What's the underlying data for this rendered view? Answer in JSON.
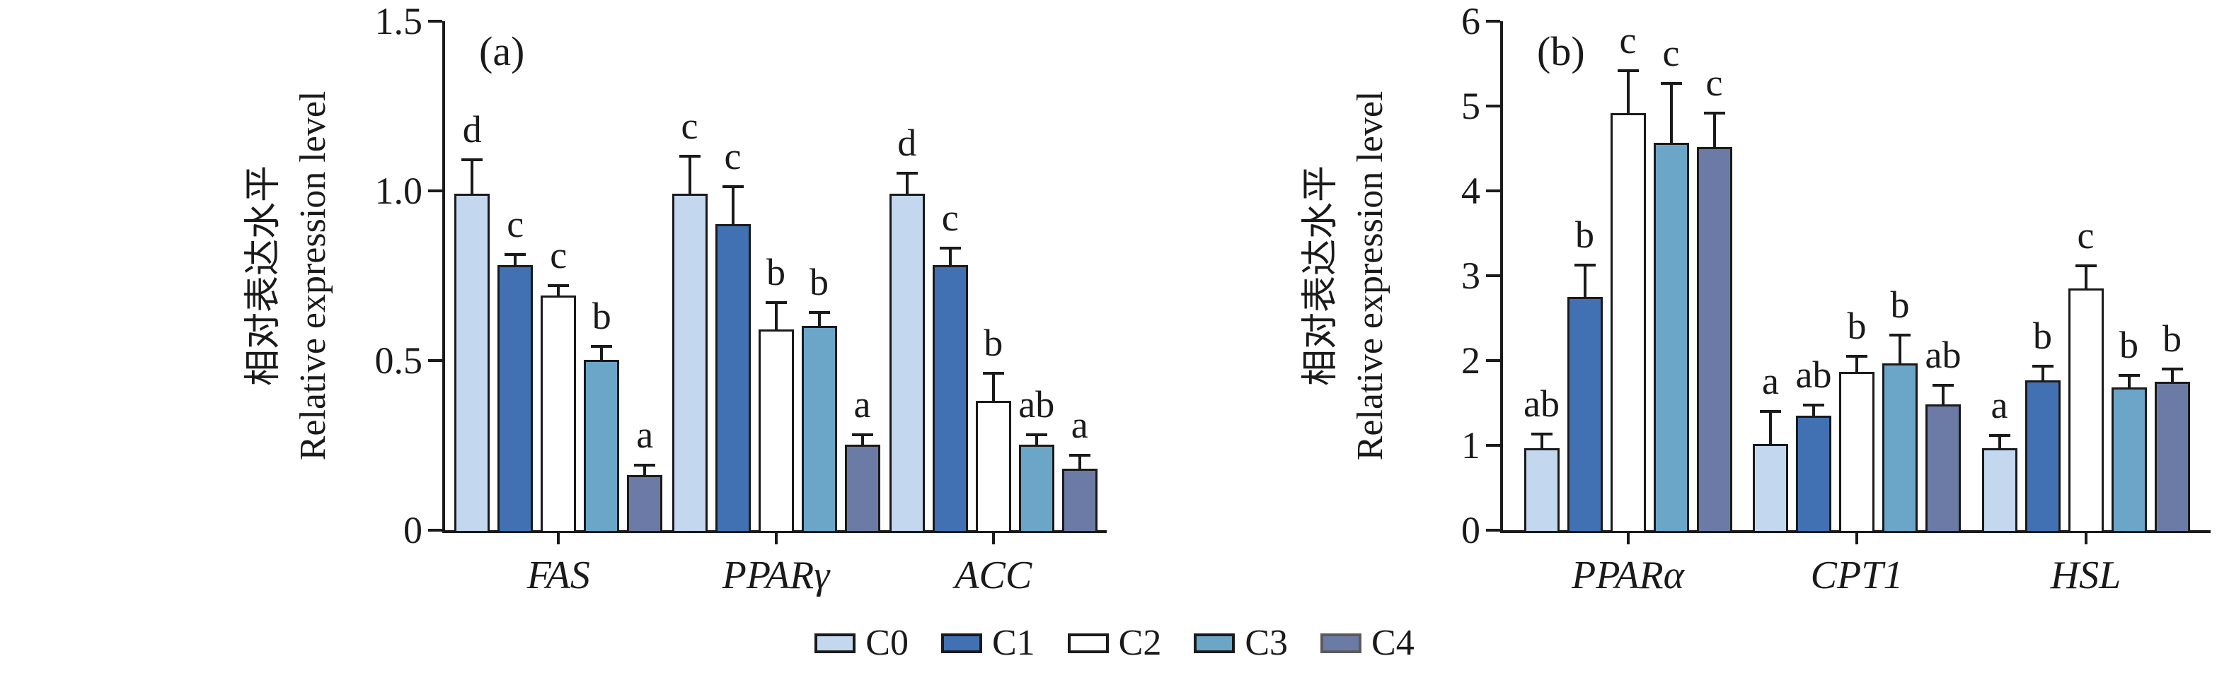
{
  "figure": {
    "background": "#ffffff",
    "text_color": "#1a1a1a",
    "axis_color": "#1a1a1a"
  },
  "legend": {
    "items": [
      {
        "label": "C0",
        "fill": "#c3d7ee",
        "border": "#1a1a1a"
      },
      {
        "label": "C1",
        "fill": "#4171b3",
        "border": "#1a1a1a"
      },
      {
        "label": "C2",
        "fill": "#ffffff",
        "border": "#1a1a1a"
      },
      {
        "label": "C3",
        "fill": "#6ba5c7",
        "border": "#1a1a1a"
      },
      {
        "label": "C4",
        "fill": "#6c7ba6",
        "border": "#5a5a5a"
      }
    ]
  },
  "chart_data": [
    {
      "type": "bar",
      "panel_label": "(a)",
      "ylabel_line1": "相对表达水平",
      "ylabel_line2": "Relative expression level",
      "ylim": [
        0,
        1.5
      ],
      "yticks": [
        {
          "value": 0,
          "label": "0"
        },
        {
          "value": 0.5,
          "label": "0.5"
        },
        {
          "value": 1.0,
          "label": "1.0"
        },
        {
          "value": 1.5,
          "label": "1.5"
        }
      ],
      "categories": [
        "FAS",
        "PPARγ",
        "ACC"
      ],
      "series": [
        {
          "name": "C0",
          "values": [
            1.0,
            1.0,
            1.0
          ],
          "errors": [
            0.1,
            0.11,
            0.06
          ],
          "letters": [
            "d",
            "c",
            "d"
          ]
        },
        {
          "name": "C1",
          "values": [
            0.79,
            0.91,
            0.79
          ],
          "errors": [
            0.03,
            0.11,
            0.05
          ],
          "letters": [
            "c",
            "c",
            "c"
          ]
        },
        {
          "name": "C2",
          "values": [
            0.7,
            0.6,
            0.39
          ],
          "errors": [
            0.03,
            0.08,
            0.08
          ],
          "letters": [
            "c",
            "b",
            "b"
          ]
        },
        {
          "name": "C3",
          "values": [
            0.51,
            0.61,
            0.26
          ],
          "errors": [
            0.04,
            0.04,
            0.03
          ],
          "letters": [
            "b",
            "b",
            "ab"
          ]
        },
        {
          "name": "C4",
          "values": [
            0.17,
            0.26,
            0.19
          ],
          "errors": [
            0.03,
            0.03,
            0.04
          ],
          "letters": [
            "a",
            "a",
            "a"
          ]
        }
      ]
    },
    {
      "type": "bar",
      "panel_label": "(b)",
      "ylabel_line1": "相对表达水平",
      "ylabel_line2": "Relative expression level",
      "ylim": [
        0,
        6
      ],
      "yticks": [
        {
          "value": 0,
          "label": "0"
        },
        {
          "value": 1,
          "label": "1"
        },
        {
          "value": 2,
          "label": "2"
        },
        {
          "value": 3,
          "label": "3"
        },
        {
          "value": 4,
          "label": "4"
        },
        {
          "value": 5,
          "label": "5"
        },
        {
          "value": 6,
          "label": "6"
        }
      ],
      "categories": [
        "PPARα",
        "CPT1",
        "HSL"
      ],
      "series": [
        {
          "name": "C0",
          "values": [
            1.0,
            1.05,
            1.0
          ],
          "errors": [
            0.17,
            0.38,
            0.15
          ],
          "letters": [
            "ab",
            "a",
            "a"
          ]
        },
        {
          "name": "C1",
          "values": [
            2.78,
            1.38,
            1.8
          ],
          "errors": [
            0.38,
            0.13,
            0.17
          ],
          "letters": [
            "b",
            "ab",
            "b"
          ]
        },
        {
          "name": "C2",
          "values": [
            4.95,
            1.9,
            2.88
          ],
          "errors": [
            0.5,
            0.18,
            0.27
          ],
          "letters": [
            "c",
            "b",
            "c"
          ]
        },
        {
          "name": "C3",
          "values": [
            4.6,
            2.0,
            1.72
          ],
          "errors": [
            0.7,
            0.33,
            0.14
          ],
          "letters": [
            "c",
            "b",
            "b"
          ]
        },
        {
          "name": "C4",
          "values": [
            4.55,
            1.52,
            1.78
          ],
          "errors": [
            0.4,
            0.22,
            0.15
          ],
          "letters": [
            "c",
            "ab",
            "b"
          ]
        }
      ]
    }
  ]
}
